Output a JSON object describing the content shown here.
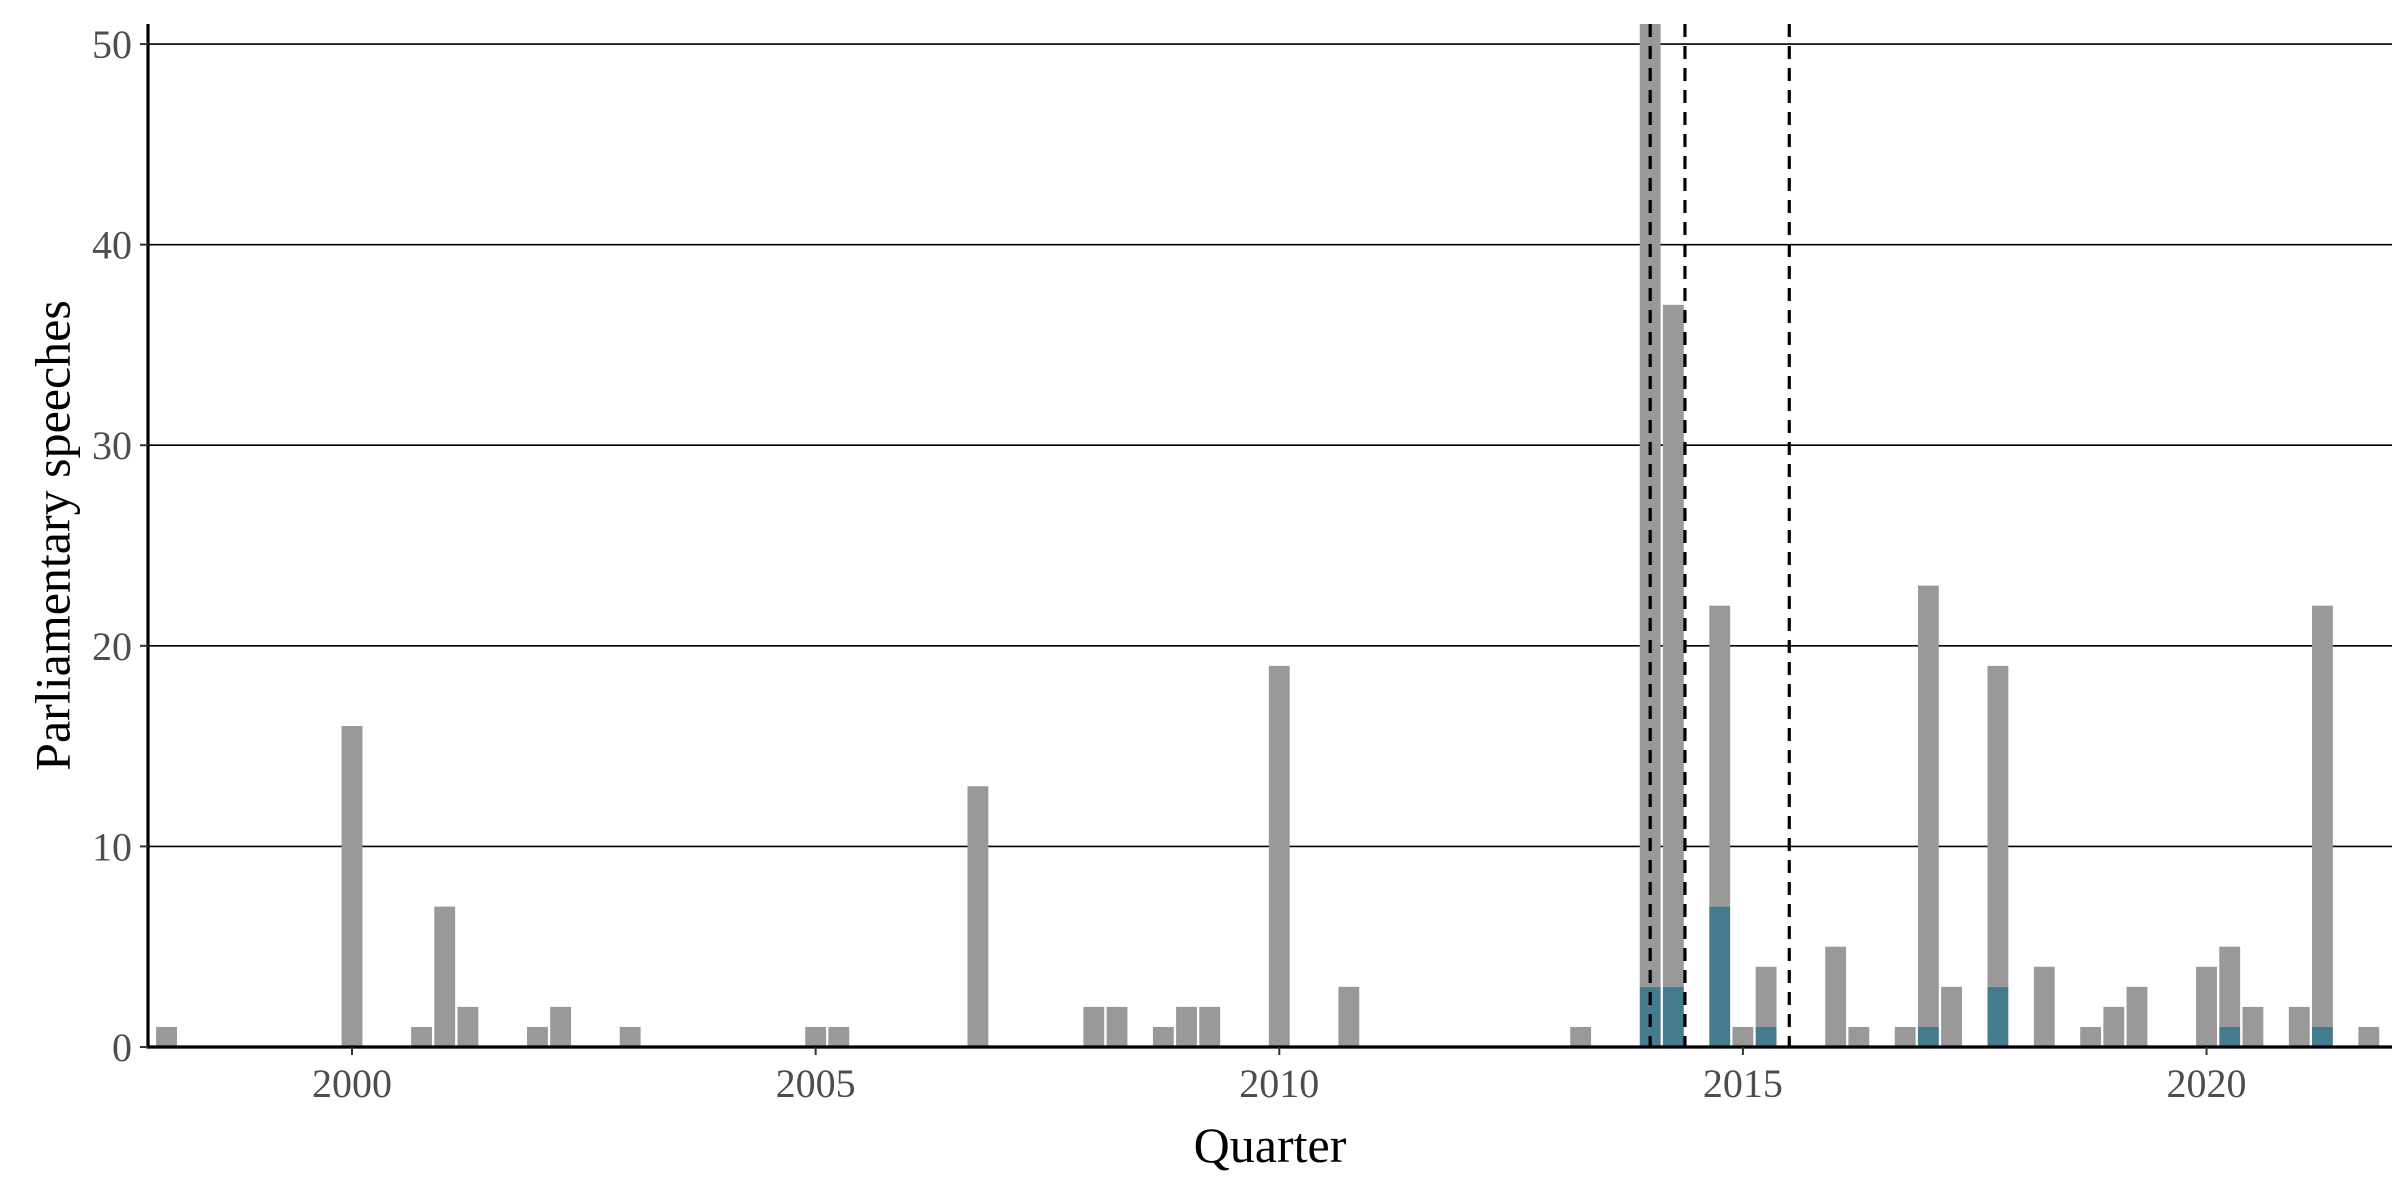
{
  "chart_data": {
    "type": "bar",
    "stacked": true,
    "title": "",
    "xlabel": "Quarter",
    "ylabel": "Parliamentary speeches",
    "xlim": [
      1997.8,
      2022.0
    ],
    "ylim": [
      0,
      51
    ],
    "x_ticks": [
      2000,
      2005,
      2010,
      2015,
      2020
    ],
    "y_ticks": [
      0,
      10,
      20,
      30,
      40,
      50
    ],
    "grid": "horizontal major",
    "legend": "none",
    "bar_width_years": 0.225,
    "vertical_reference_lines": [
      2014.0,
      2014.375,
      2015.5
    ],
    "colors": {
      "series_other": "#999999",
      "series_highlight": "#457b8f",
      "gridline": "#000000",
      "reference_line": "#000000",
      "axis": "#000000"
    },
    "series": [
      {
        "key": "other",
        "x": [
          1998.0,
          2000.0,
          2000.75,
          2001.0,
          2001.25,
          2002.0,
          2002.25,
          2003.0,
          2005.0,
          2005.25,
          2006.75,
          2008.0,
          2008.25,
          2008.75,
          2009.0,
          2009.25,
          2010.0,
          2010.75,
          2013.25,
          2014.0,
          2014.25,
          2014.75,
          2015.0,
          2015.25,
          2016.0,
          2016.25,
          2016.75,
          2017.0,
          2017.25,
          2017.75,
          2018.25,
          2018.75,
          2019.0,
          2019.25,
          2020.0,
          2020.25,
          2020.5,
          2021.0,
          2021.25,
          2021.75
        ],
        "values": [
          1,
          16,
          1,
          7,
          2,
          1,
          2,
          1,
          1,
          1,
          13,
          2,
          2,
          1,
          2,
          2,
          19,
          3,
          1,
          48,
          34,
          15,
          1,
          3,
          5,
          1,
          1,
          22,
          3,
          16,
          4,
          1,
          2,
          3,
          4,
          4,
          2,
          2,
          21,
          1
        ]
      },
      {
        "key": "highlight",
        "x": [
          2014.0,
          2014.25,
          2014.75,
          2015.25,
          2017.0,
          2017.75,
          2020.25,
          2021.25
        ],
        "values": [
          3,
          3,
          7,
          1,
          1,
          3,
          1,
          1
        ]
      }
    ]
  }
}
